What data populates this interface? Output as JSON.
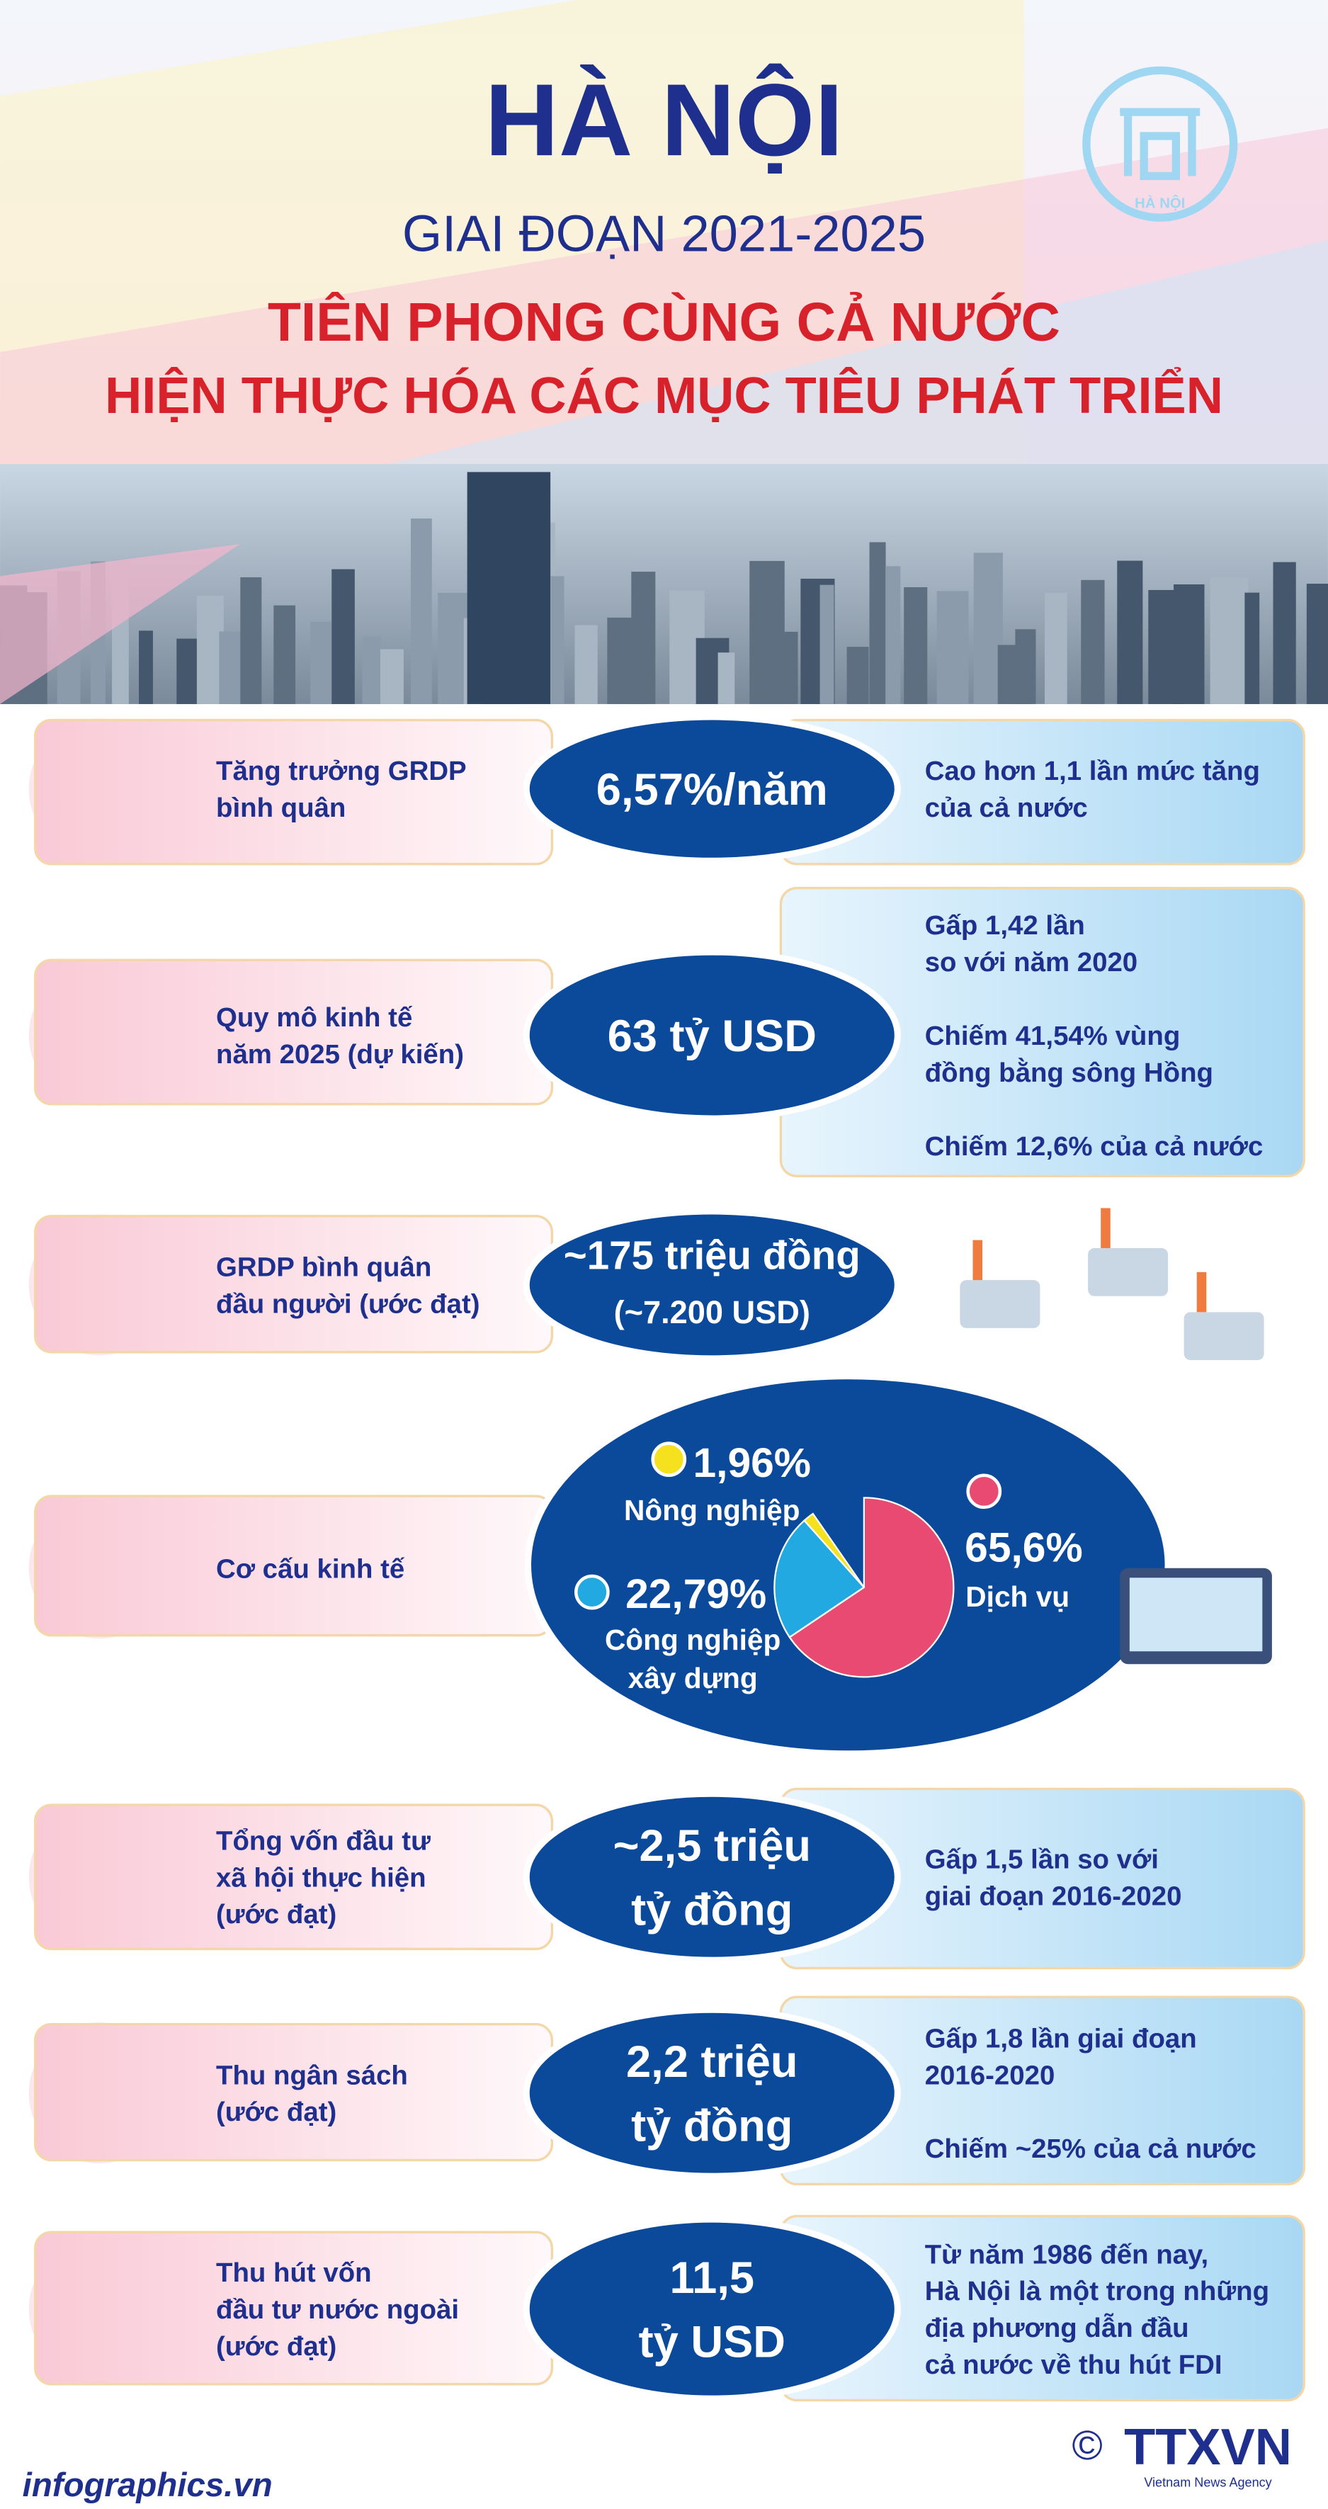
{
  "header": {
    "title": "HÀ NỘI",
    "period": "GIAI ĐOẠN 2021-2025",
    "headline": [
      "TIÊN PHONG CÙNG CẢ NƯỚC",
      "HIỆN THỰC HÓA CÁC MỤC TIÊU PHÁT TRIỂN"
    ],
    "logo_text": "HÀ NỘI"
  },
  "rows": [
    {
      "label": [
        "Tăng trưởng GRDP",
        "bình quân"
      ],
      "value": [
        "6,57%/năm"
      ],
      "notes": [
        [
          "Cao hơn 1,1 lần mức tăng",
          "của cả nước"
        ]
      ]
    },
    {
      "label": [
        "Quy mô kinh tế",
        "năm 2025 (dự kiến)"
      ],
      "value": [
        "63 tỷ USD"
      ],
      "notes": [
        [
          "Gấp 1,42 lần",
          "so với năm 2020"
        ],
        [
          "Chiếm 41,54% vùng",
          "đồng bằng sông Hồng"
        ],
        [
          "Chiếm 12,6% của cả nước"
        ]
      ]
    },
    {
      "label": [
        "GRDP bình quân",
        "đầu người (ước đạt)"
      ],
      "value": [
        "~175 triệu đồng",
        "(~7.200 USD)"
      ]
    },
    {
      "label": [
        "Tổng vốn đầu tư",
        "xã hội thực hiện",
        "(ước đạt)"
      ],
      "value": [
        "~2,5 triệu",
        "tỷ đồng"
      ],
      "notes": [
        [
          "Gấp 1,5 lần so với",
          "giai đoạn 2016-2020"
        ]
      ]
    },
    {
      "label": [
        "Thu ngân sách",
        "(ước đạt)"
      ],
      "value": [
        "2,2 triệu",
        "tỷ đồng"
      ],
      "notes": [
        [
          "Gấp 1,8 lần giai đoạn",
          "2016-2020"
        ],
        [
          "Chiếm ~25% của cả nước"
        ]
      ]
    },
    {
      "label": [
        "Thu hút vốn",
        "đầu tư nước ngoài",
        "(ước đạt)"
      ],
      "value": [
        "11,5",
        "tỷ USD"
      ],
      "notes": [
        [
          "Từ năm 1986 đến nay,",
          "Hà Nội là một trong những",
          "địa phương dẫn đầu",
          "cả nước về thu hút FDI"
        ]
      ]
    }
  ],
  "structure": {
    "label": [
      "Cơ cấu kinh tế"
    ],
    "slices": [
      {
        "name": [
          "Dịch vụ"
        ],
        "value": 65.6,
        "label": "65,6%",
        "color": "#e94a72"
      },
      {
        "name": [
          "Công nghiệp",
          "xây dựng"
        ],
        "value": 22.79,
        "label": "22,79%",
        "color": "#22a9e1"
      },
      {
        "name": [
          "Nông nghiệp"
        ],
        "value": 1.96,
        "label": "1,96%",
        "color": "#f6e11e"
      }
    ]
  },
  "footer": {
    "site": "infographics.vn",
    "copyright": "©",
    "agency": "TTXVN",
    "agency_sub": "Vietnam News Agency"
  }
}
